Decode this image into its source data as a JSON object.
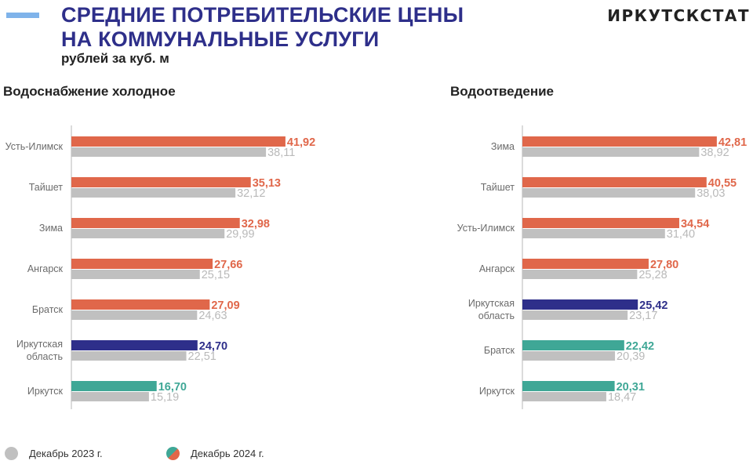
{
  "header": {
    "title_line1": "СРЕДНИЕ ПОТРЕБИТЕЛЬСКИЕ ЦЕНЫ",
    "title_line2": "НА КОММУНАЛЬНЫЕ УСЛУГИ",
    "subtitle": "рублей за куб. м",
    "brand": "ИРКУТСКСТАТ"
  },
  "colors": {
    "orange": "#e0674a",
    "navy": "#2e2f8a",
    "teal": "#3fa796",
    "grey": "#c0c0c0",
    "accent": "#7fb3ea"
  },
  "legend": {
    "items": [
      {
        "label": "Декабрь 2023 г.",
        "color": "#c0c0c0"
      },
      {
        "label": "Декабрь 2024 г.",
        "color_a": "#e0674a",
        "color_b": "#3fa796"
      }
    ]
  },
  "chart_data": [
    {
      "type": "bar",
      "orientation": "horizontal",
      "title": "Водоснабжение холодное",
      "categories": [
        "Усть-Илимск",
        "Тайшет",
        "Зима",
        "Ангарск",
        "Братск",
        "Иркутская область",
        "Иркутск"
      ],
      "category_lines": [
        [
          "Усть-Илимск"
        ],
        [
          "Тайшет"
        ],
        [
          "Зима"
        ],
        [
          "Ангарск"
        ],
        [
          "Братск"
        ],
        [
          "Иркутская",
          "область"
        ],
        [
          "Иркутск"
        ]
      ],
      "series": [
        {
          "name": "Декабрь 2024 г.",
          "values": [
            41.92,
            35.13,
            32.98,
            27.66,
            27.09,
            24.7,
            16.7
          ],
          "labels": [
            "41,92",
            "35,13",
            "32,98",
            "27,66",
            "27,09",
            "24,70",
            "16,70"
          ],
          "colors": [
            "#e0674a",
            "#e0674a",
            "#e0674a",
            "#e0674a",
            "#e0674a",
            "#2e2f8a",
            "#3fa796"
          ]
        },
        {
          "name": "Декабрь 2023 г.",
          "values": [
            38.11,
            32.12,
            29.99,
            25.15,
            24.63,
            22.51,
            15.19
          ],
          "labels": [
            "38,11",
            "32,12",
            "29,99",
            "25,15",
            "24,63",
            "22,51",
            "15,19"
          ]
        }
      ],
      "xlim": [
        0,
        45
      ],
      "grid": false
    },
    {
      "type": "bar",
      "orientation": "horizontal",
      "title": "Водоотведение",
      "categories": [
        "Зима",
        "Тайшет",
        "Усть-Илимск",
        "Ангарск",
        "Иркутская область",
        "Братск",
        "Иркутск"
      ],
      "category_lines": [
        [
          "Зима"
        ],
        [
          "Тайшет"
        ],
        [
          "Усть-Илимск"
        ],
        [
          "Ангарск"
        ],
        [
          "Иркутская",
          "область"
        ],
        [
          "Братск"
        ],
        [
          "Иркутск"
        ]
      ],
      "series": [
        {
          "name": "Декабрь 2024 г.",
          "values": [
            42.81,
            40.55,
            34.54,
            27.8,
            25.42,
            22.42,
            20.31
          ],
          "labels": [
            "42,81",
            "40,55",
            "34,54",
            "27,80",
            "25,42",
            "22,42",
            "20,31"
          ],
          "colors": [
            "#e0674a",
            "#e0674a",
            "#e0674a",
            "#e0674a",
            "#2e2f8a",
            "#3fa796",
            "#3fa796"
          ]
        },
        {
          "name": "Декабрь 2023 г.",
          "values": [
            38.92,
            38.03,
            31.4,
            25.28,
            23.17,
            20.39,
            18.47
          ],
          "labels": [
            "38,92",
            "38,03",
            "31,40",
            "25,28",
            "23,17",
            "20,39",
            "18,47"
          ]
        }
      ],
      "xlim": [
        0,
        45
      ],
      "grid": false
    }
  ]
}
